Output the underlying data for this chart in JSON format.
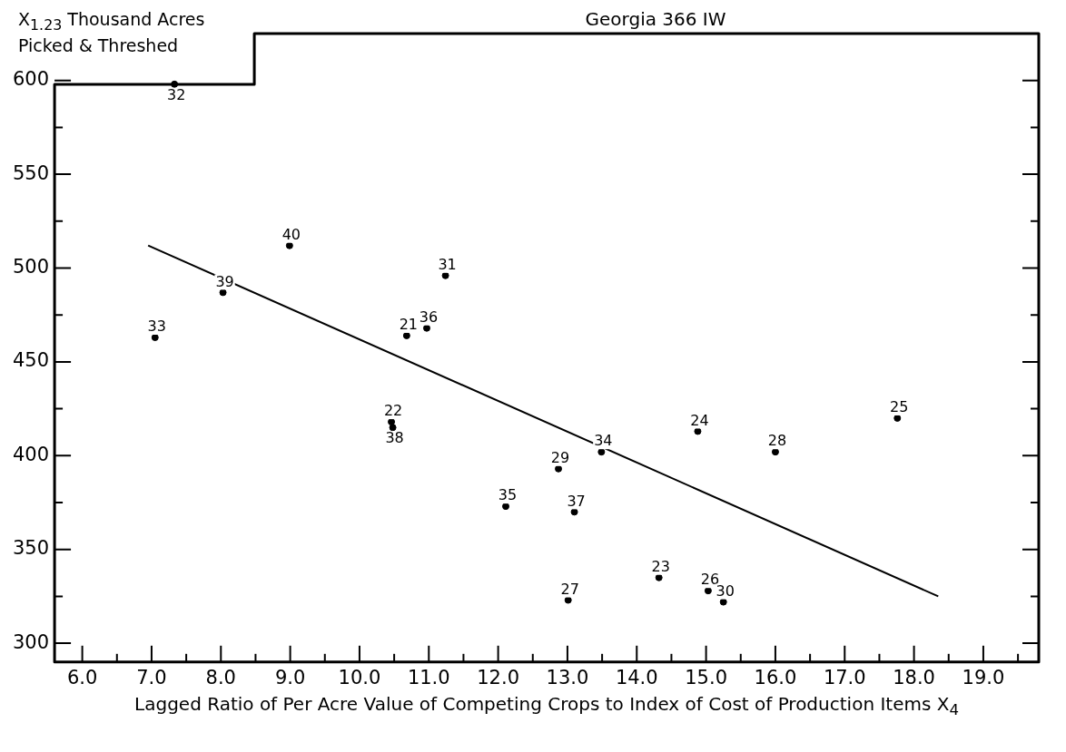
{
  "chart_data": {
    "type": "scatter",
    "title": "Georgia 366 IW",
    "xlabel": "Lagged Ratio of Per Acre Value of Competing Crops to Index of Cost of Production Items X$_{4}$",
    "ylabel": "X$_{1.23}$ Thousand Acres Picked & Threshed",
    "xlim": [
      5.6,
      19.8
    ],
    "ylim": [
      290,
      625
    ],
    "xticks": [
      {
        "value": 6,
        "label": "6.0"
      },
      {
        "value": 6.5,
        "label": null
      },
      {
        "value": 7,
        "label": "7.0"
      },
      {
        "value": 7.5,
        "label": null
      },
      {
        "value": 8,
        "label": "8.0"
      },
      {
        "value": 8.5,
        "label": null
      },
      {
        "value": 9,
        "label": "9.0"
      },
      {
        "value": 9.5,
        "label": null
      },
      {
        "value": 10,
        "label": "10.0"
      },
      {
        "value": 10.5,
        "label": null
      },
      {
        "value": 11,
        "label": "11.0"
      },
      {
        "value": 11.5,
        "label": null
      },
      {
        "value": 12,
        "label": "12.0"
      },
      {
        "value": 12.5,
        "label": null
      },
      {
        "value": 13,
        "label": "13.0"
      },
      {
        "value": 13.5,
        "label": null
      },
      {
        "value": 14,
        "label": "14.0"
      },
      {
        "value": 14.5,
        "label": null
      },
      {
        "value": 15,
        "label": "15.0"
      },
      {
        "value": 15.5,
        "label": null
      },
      {
        "value": 16,
        "label": "16.0"
      },
      {
        "value": 16.5,
        "label": null
      },
      {
        "value": 17,
        "label": "17.0"
      },
      {
        "value": 17.5,
        "label": null
      },
      {
        "value": 18,
        "label": "18.0"
      },
      {
        "value": 18.5,
        "label": null
      },
      {
        "value": 19,
        "label": "19.0"
      },
      {
        "value": 19.5,
        "label": null
      }
    ],
    "yticks": [
      300,
      {
        "value": 325,
        "label": null
      },
      350,
      {
        "value": 375,
        "label": null
      },
      400,
      {
        "value": 425,
        "label": null
      },
      450,
      {
        "value": 475,
        "label": null
      },
      500,
      {
        "value": 525,
        "label": null
      },
      550,
      {
        "value": 575,
        "label": null
      },
      600
    ],
    "series": [
      {
        "color": "#000000",
        "marker": "circle",
        "x": [
          7.33,
          8.99,
          11.24,
          8.03,
          10.97,
          7.05,
          10.68,
          10.46,
          10.48,
          12.11,
          12.87,
          13.49,
          13.1,
          13.01,
          14.32,
          15.03,
          15.25,
          14.88,
          16.0,
          17.76
        ],
        "values": [
          598,
          512,
          496,
          487,
          468,
          463,
          464,
          418,
          415,
          373,
          393,
          402,
          370,
          323,
          335,
          328,
          322,
          413,
          402,
          420
        ]
      },
      {
        "type": "line",
        "color": "#000000",
        "marker": "none",
        "x": [
          6.95,
          18.35
        ],
        "values": [
          512,
          325
        ]
      }
    ],
    "annotations": [
      {
        "text": "32",
        "x": 7.33,
        "y": 598
      },
      {
        "text": "40",
        "x": 8.99,
        "y": 512
      },
      {
        "text": "31",
        "x": 11.24,
        "y": 496
      },
      {
        "text": "39",
        "x": 8.03,
        "y": 487
      },
      {
        "text": "36",
        "x": 10.97,
        "y": 468
      },
      {
        "text": "33",
        "x": 7.05,
        "y": 463
      },
      {
        "text": "21",
        "x": 10.68,
        "y": 464
      },
      {
        "text": "22",
        "x": 10.46,
        "y": 418
      },
      {
        "text": "38",
        "x": 10.48,
        "y": 415
      },
      {
        "text": "35",
        "x": 12.11,
        "y": 373
      },
      {
        "text": "29",
        "x": 12.87,
        "y": 393
      },
      {
        "text": "34",
        "x": 13.49,
        "y": 402
      },
      {
        "text": "37",
        "x": 13.1,
        "y": 370
      },
      {
        "text": "27",
        "x": 13.01,
        "y": 323
      },
      {
        "text": "23",
        "x": 14.32,
        "y": 335
      },
      {
        "text": "26",
        "x": 15.03,
        "y": 328
      },
      {
        "text": "30",
        "x": 15.25,
        "y": 322
      },
      {
        "text": "24",
        "x": 14.88,
        "y": 413
      },
      {
        "text": "28",
        "x": 16.0,
        "y": 402
      },
      {
        "text": "25",
        "x": 17.76,
        "y": 420
      }
    ]
  }
}
